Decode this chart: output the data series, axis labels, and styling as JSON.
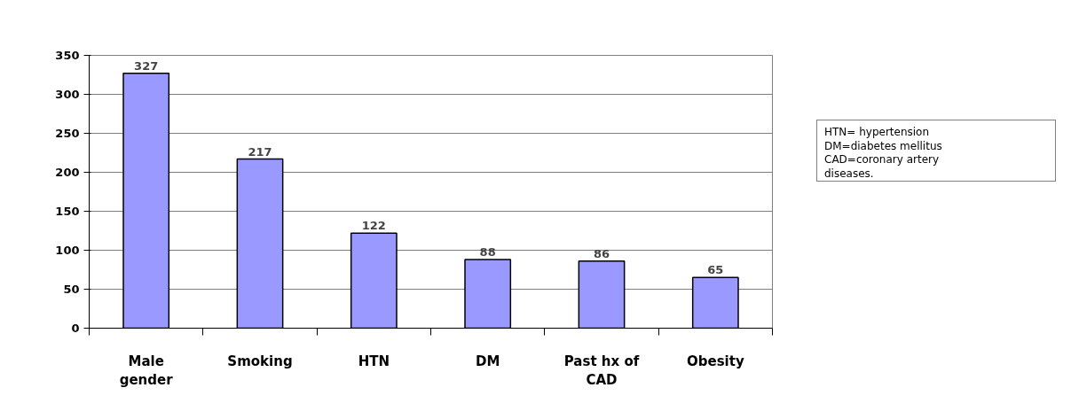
{
  "chart_data": {
    "type": "bar",
    "categories": [
      "Male gender",
      "Smoking",
      "HTN",
      "DM",
      "Past hx of CAD",
      "Obesity"
    ],
    "values": [
      327,
      217,
      122,
      88,
      86,
      65
    ],
    "color": "#9999ff",
    "ylim": [
      0,
      350
    ],
    "yticks": [
      0,
      50,
      100,
      150,
      200,
      250,
      300,
      350
    ],
    "grid": "y",
    "data_labels": true,
    "annotations": [
      "HTN= hypertension",
      "DM=diabetes mellitus",
      "CAD=coronary artery",
      "diseases."
    ]
  }
}
